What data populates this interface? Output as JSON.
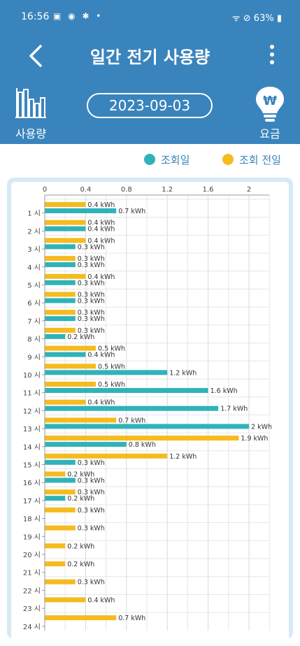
{
  "status": {
    "time": "16:56",
    "left_icons": "▣ ◉ ✱ •",
    "battery": "63%",
    "right_icons": "ᯤ ⊘"
  },
  "header": {
    "title": "일간 전기 사용량",
    "date": "2023-09-03",
    "usage_label": "사용량",
    "fee_label": "요금",
    "fee_symbol": "₩"
  },
  "legend": {
    "current": "조회일",
    "previous": "조회 전일"
  },
  "colors": {
    "header_bg": "#3a84bd",
    "current": "#2fb3b9",
    "previous": "#f5bb1f",
    "panel": "#d6eaf6"
  },
  "chart_data": {
    "type": "bar",
    "orientation": "horizontal",
    "xlim": [
      0,
      2.2
    ],
    "xticks": [
      "0",
      "0.4",
      "0.8",
      "1.2",
      "1.6",
      "2"
    ],
    "unit": "kWh",
    "categories": [
      "1 시",
      "2 시",
      "3 시",
      "4 시",
      "5 시",
      "6 시",
      "7 시",
      "8 시",
      "9 시",
      "10 시",
      "11 시",
      "12 시",
      "13 시",
      "14 시",
      "15 시",
      "16 시",
      "17 시",
      "18 시",
      "19 시",
      "20 시",
      "21 시",
      "22 시",
      "23 시",
      "24 시"
    ],
    "series": [
      {
        "name": "조회 전일",
        "values": [
          0.4,
          0.4,
          0.4,
          0.3,
          0.4,
          0.3,
          0.3,
          0.3,
          0.5,
          0.5,
          0.5,
          0.4,
          0.7,
          1.9,
          1.2,
          0.2,
          0.3,
          0.3,
          0.3,
          0.2,
          0.2,
          0.3,
          0.4,
          0.7
        ],
        "labels": [
          "0.4 kWh",
          "0.4 kWh",
          "0.4 kWh",
          "0.3 kWh",
          "0.4 kWh",
          "0.3 kWh",
          "0.3 kWh",
          "0.3 kWh",
          "0.5 kWh",
          "0.5 kWh",
          "0.5 kWh",
          "0.4 kWh",
          "0.7 kWh",
          "1.9 kWh",
          "1.2 kWh",
          "0.2 kWh",
          "0.3 kWh",
          "0.3 kWh",
          "0.3 kWh",
          "0.2 kWh",
          "0.2 kWh",
          "0.3 kWh",
          "0.4 kWh",
          "0.7 kWh"
        ]
      },
      {
        "name": "조회일",
        "values": [
          0.7,
          0.4,
          0.3,
          0.3,
          0.3,
          0.3,
          0.3,
          0.2,
          0.4,
          1.2,
          1.6,
          1.7,
          2.0,
          0.8,
          0.3,
          0.3,
          0.2,
          null,
          null,
          null,
          null,
          null,
          null,
          null
        ],
        "labels": [
          "0.7 kWh",
          "0.4 kWh",
          "0.3 kWh",
          "0.3 kWh",
          "0.3 kWh",
          "0.3 kWh",
          "0.3 kWh",
          "0.2 kWh",
          "0.4 kWh",
          "1.2 kWh",
          "1.6 kWh",
          "1.7 kWh",
          "2 kWh",
          "0.8 kWh",
          "0.3 kWh",
          "0.3 kWh",
          "0.2 kWh",
          null,
          null,
          null,
          null,
          null,
          null,
          null
        ]
      }
    ]
  }
}
